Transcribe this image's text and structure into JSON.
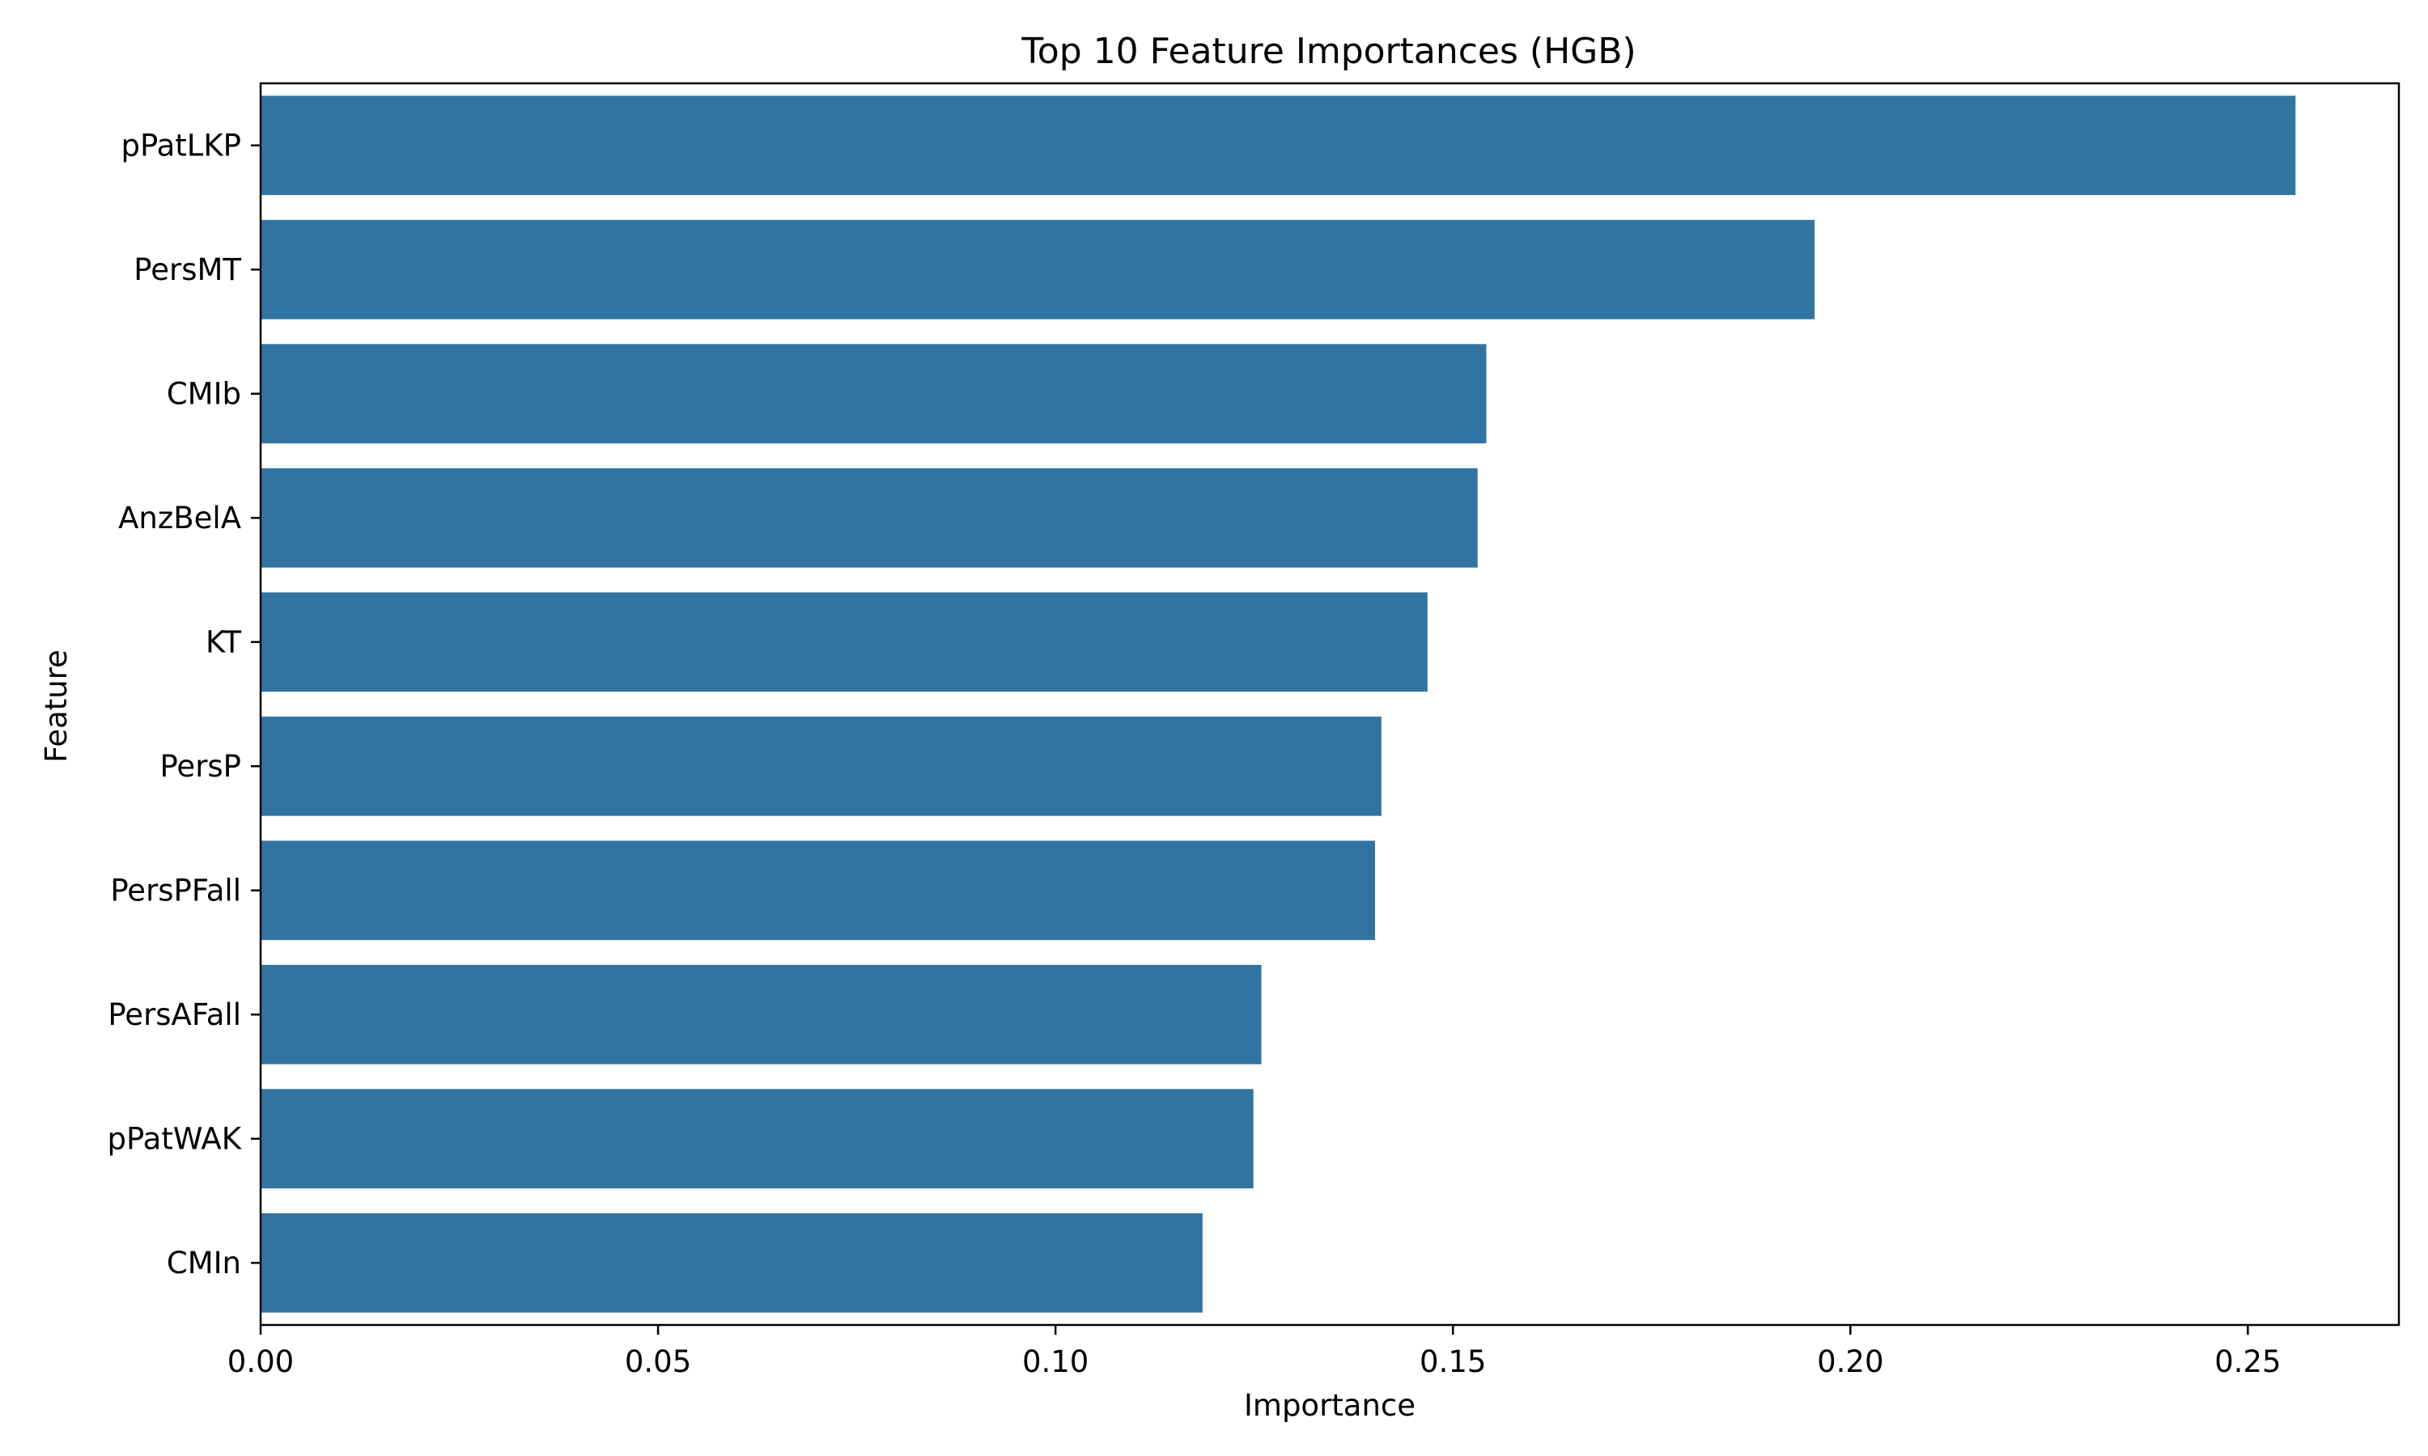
{
  "chart_data": {
    "type": "bar",
    "orientation": "horizontal",
    "title": "Top 10 Feature Importances (HGB)",
    "xlabel": "Importance",
    "ylabel": "Feature",
    "categories": [
      "pPatLKP",
      "PersMT",
      "CMIb",
      "AnzBelA",
      "KT",
      "PersP",
      "PersPFall",
      "PersAFall",
      "pPatWAK",
      "CMIn"
    ],
    "values": [
      0.256,
      0.1955,
      0.1542,
      0.1531,
      0.1468,
      0.141,
      0.1402,
      0.1259,
      0.1249,
      0.1185
    ],
    "xlim": [
      0,
      0.269
    ],
    "xticks": [
      0.0,
      0.05,
      0.1,
      0.15,
      0.2,
      0.25
    ],
    "xtick_labels": [
      "0.00",
      "0.05",
      "0.10",
      "0.15",
      "0.20",
      "0.25"
    ],
    "grid": false,
    "legend": "none",
    "bar_color": "#3274a1"
  }
}
